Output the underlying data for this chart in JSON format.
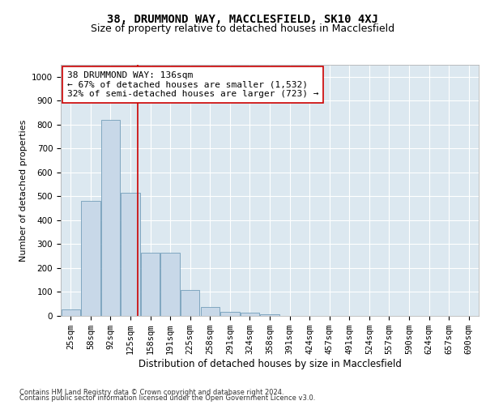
{
  "title1": "38, DRUMMOND WAY, MACCLESFIELD, SK10 4XJ",
  "title2": "Size of property relative to detached houses in Macclesfield",
  "xlabel": "Distribution of detached houses by size in Macclesfield",
  "ylabel": "Number of detached properties",
  "footnote1": "Contains HM Land Registry data © Crown copyright and database right 2024.",
  "footnote2": "Contains public sector information licensed under the Open Government Licence v3.0.",
  "annotation_line1": "38 DRUMMOND WAY: 136sqm",
  "annotation_line2": "← 67% of detached houses are smaller (1,532)",
  "annotation_line3": "32% of semi-detached houses are larger (723) →",
  "categories": [
    "25sqm",
    "58sqm",
    "92sqm",
    "125sqm",
    "158sqm",
    "191sqm",
    "225sqm",
    "258sqm",
    "291sqm",
    "324sqm",
    "358sqm",
    "391sqm",
    "424sqm",
    "457sqm",
    "491sqm",
    "524sqm",
    "557sqm",
    "590sqm",
    "624sqm",
    "657sqm",
    "690sqm"
  ],
  "values": [
    28,
    480,
    820,
    515,
    265,
    265,
    110,
    38,
    18,
    12,
    8,
    0,
    0,
    0,
    0,
    0,
    0,
    0,
    0,
    0,
    0
  ],
  "ylim": [
    0,
    1050
  ],
  "yticks": [
    0,
    100,
    200,
    300,
    400,
    500,
    600,
    700,
    800,
    900,
    1000
  ],
  "bar_color": "#c8d8e8",
  "bar_edgecolor": "#6090b0",
  "vline_x_index": 3.36,
  "vline_color": "#cc0000",
  "plot_bg_color": "#dce8f0",
  "annotation_box_facecolor": "#ffffff",
  "annotation_box_edgecolor": "#cc0000",
  "grid_color": "#ffffff",
  "title1_fontsize": 10,
  "title2_fontsize": 9,
  "xlabel_fontsize": 8.5,
  "ylabel_fontsize": 8,
  "annotation_fontsize": 8,
  "tick_fontsize": 7.5,
  "footnote_fontsize": 6
}
